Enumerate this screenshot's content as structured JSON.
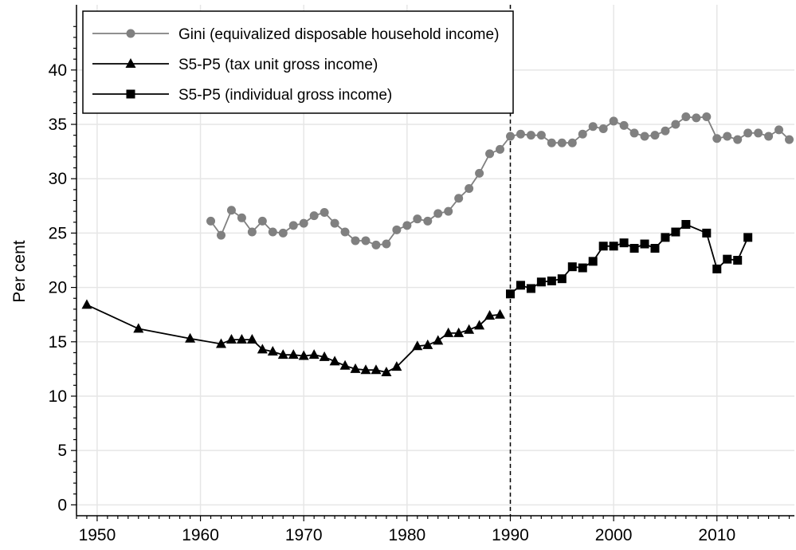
{
  "chart_data": {
    "type": "line",
    "title": "",
    "xlabel": "",
    "ylabel": "Per cent",
    "xlim": [
      1948,
      2017.5
    ],
    "ylim": [
      -1,
      46
    ],
    "x_ticks": [
      1950,
      1960,
      1970,
      1980,
      1990,
      2000,
      2010
    ],
    "y_ticks": [
      0,
      5,
      10,
      15,
      20,
      25,
      30,
      35,
      40
    ],
    "grid": true,
    "legend_position": "top-left",
    "reference_line": {
      "x": 1990,
      "style": "dashed"
    },
    "series": [
      {
        "name": "Gini (equivalized disposable household income)",
        "color": "#808080",
        "marker": "circle",
        "x": [
          1961,
          1962,
          1963,
          1964,
          1965,
          1966,
          1967,
          1968,
          1969,
          1970,
          1971,
          1972,
          1973,
          1974,
          1975,
          1976,
          1977,
          1978,
          1979,
          1980,
          1981,
          1982,
          1983,
          1984,
          1985,
          1986,
          1987,
          1988,
          1989,
          1990,
          1991,
          1992,
          1993,
          1994,
          1995,
          1996,
          1997,
          1998,
          1999,
          2000,
          2001,
          2002,
          2003,
          2004,
          2005,
          2006,
          2007,
          2008,
          2009,
          2010,
          2011,
          2012,
          2013,
          2014,
          2015,
          2016,
          2017
        ],
        "y": [
          26.1,
          24.8,
          27.1,
          26.4,
          25.1,
          26.1,
          25.1,
          25.0,
          25.7,
          25.9,
          26.6,
          26.9,
          25.9,
          25.1,
          24.3,
          24.3,
          23.9,
          24.0,
          25.3,
          25.7,
          26.3,
          26.1,
          26.8,
          27.0,
          28.2,
          29.1,
          30.5,
          32.3,
          32.7,
          33.9,
          34.1,
          34.0,
          34.0,
          33.3,
          33.3,
          33.3,
          34.1,
          34.8,
          34.6,
          35.3,
          34.9,
          34.2,
          33.9,
          34.0,
          34.4,
          35.0,
          35.7,
          35.6,
          35.7,
          33.7,
          33.9,
          33.6,
          34.2,
          34.2,
          33.9,
          34.5,
          33.6
        ]
      },
      {
        "name": "S5-P5 (tax unit gross income)",
        "color": "#000000",
        "marker": "triangle",
        "x": [
          1949,
          1954,
          1959,
          1962,
          1963,
          1964,
          1965,
          1966,
          1967,
          1968,
          1969,
          1970,
          1971,
          1972,
          1973,
          1974,
          1975,
          1976,
          1977,
          1978,
          1979,
          1981,
          1982,
          1983,
          1984,
          1985,
          1986,
          1987,
          1988,
          1989
        ],
        "y": [
          18.4,
          16.2,
          15.3,
          14.8,
          15.2,
          15.2,
          15.2,
          14.3,
          14.1,
          13.8,
          13.8,
          13.7,
          13.8,
          13.6,
          13.2,
          12.8,
          12.5,
          12.4,
          12.4,
          12.2,
          12.7,
          14.6,
          14.7,
          15.1,
          15.8,
          15.8,
          16.1,
          16.5,
          17.4,
          17.5
        ]
      },
      {
        "name": "S5-P5 (individual gross income)",
        "color": "#000000",
        "marker": "square",
        "x": [
          1990,
          1991,
          1992,
          1993,
          1994,
          1995,
          1996,
          1997,
          1998,
          1999,
          2000,
          2001,
          2002,
          2003,
          2004,
          2005,
          2006,
          2007,
          2009,
          2010,
          2011,
          2012,
          2013
        ],
        "y": [
          19.4,
          20.2,
          19.9,
          20.5,
          20.6,
          20.8,
          21.9,
          21.8,
          22.4,
          23.8,
          23.8,
          24.1,
          23.6,
          24.0,
          23.6,
          24.6,
          25.1,
          25.8,
          25.0,
          21.7,
          22.6,
          22.5,
          24.6
        ]
      }
    ]
  }
}
